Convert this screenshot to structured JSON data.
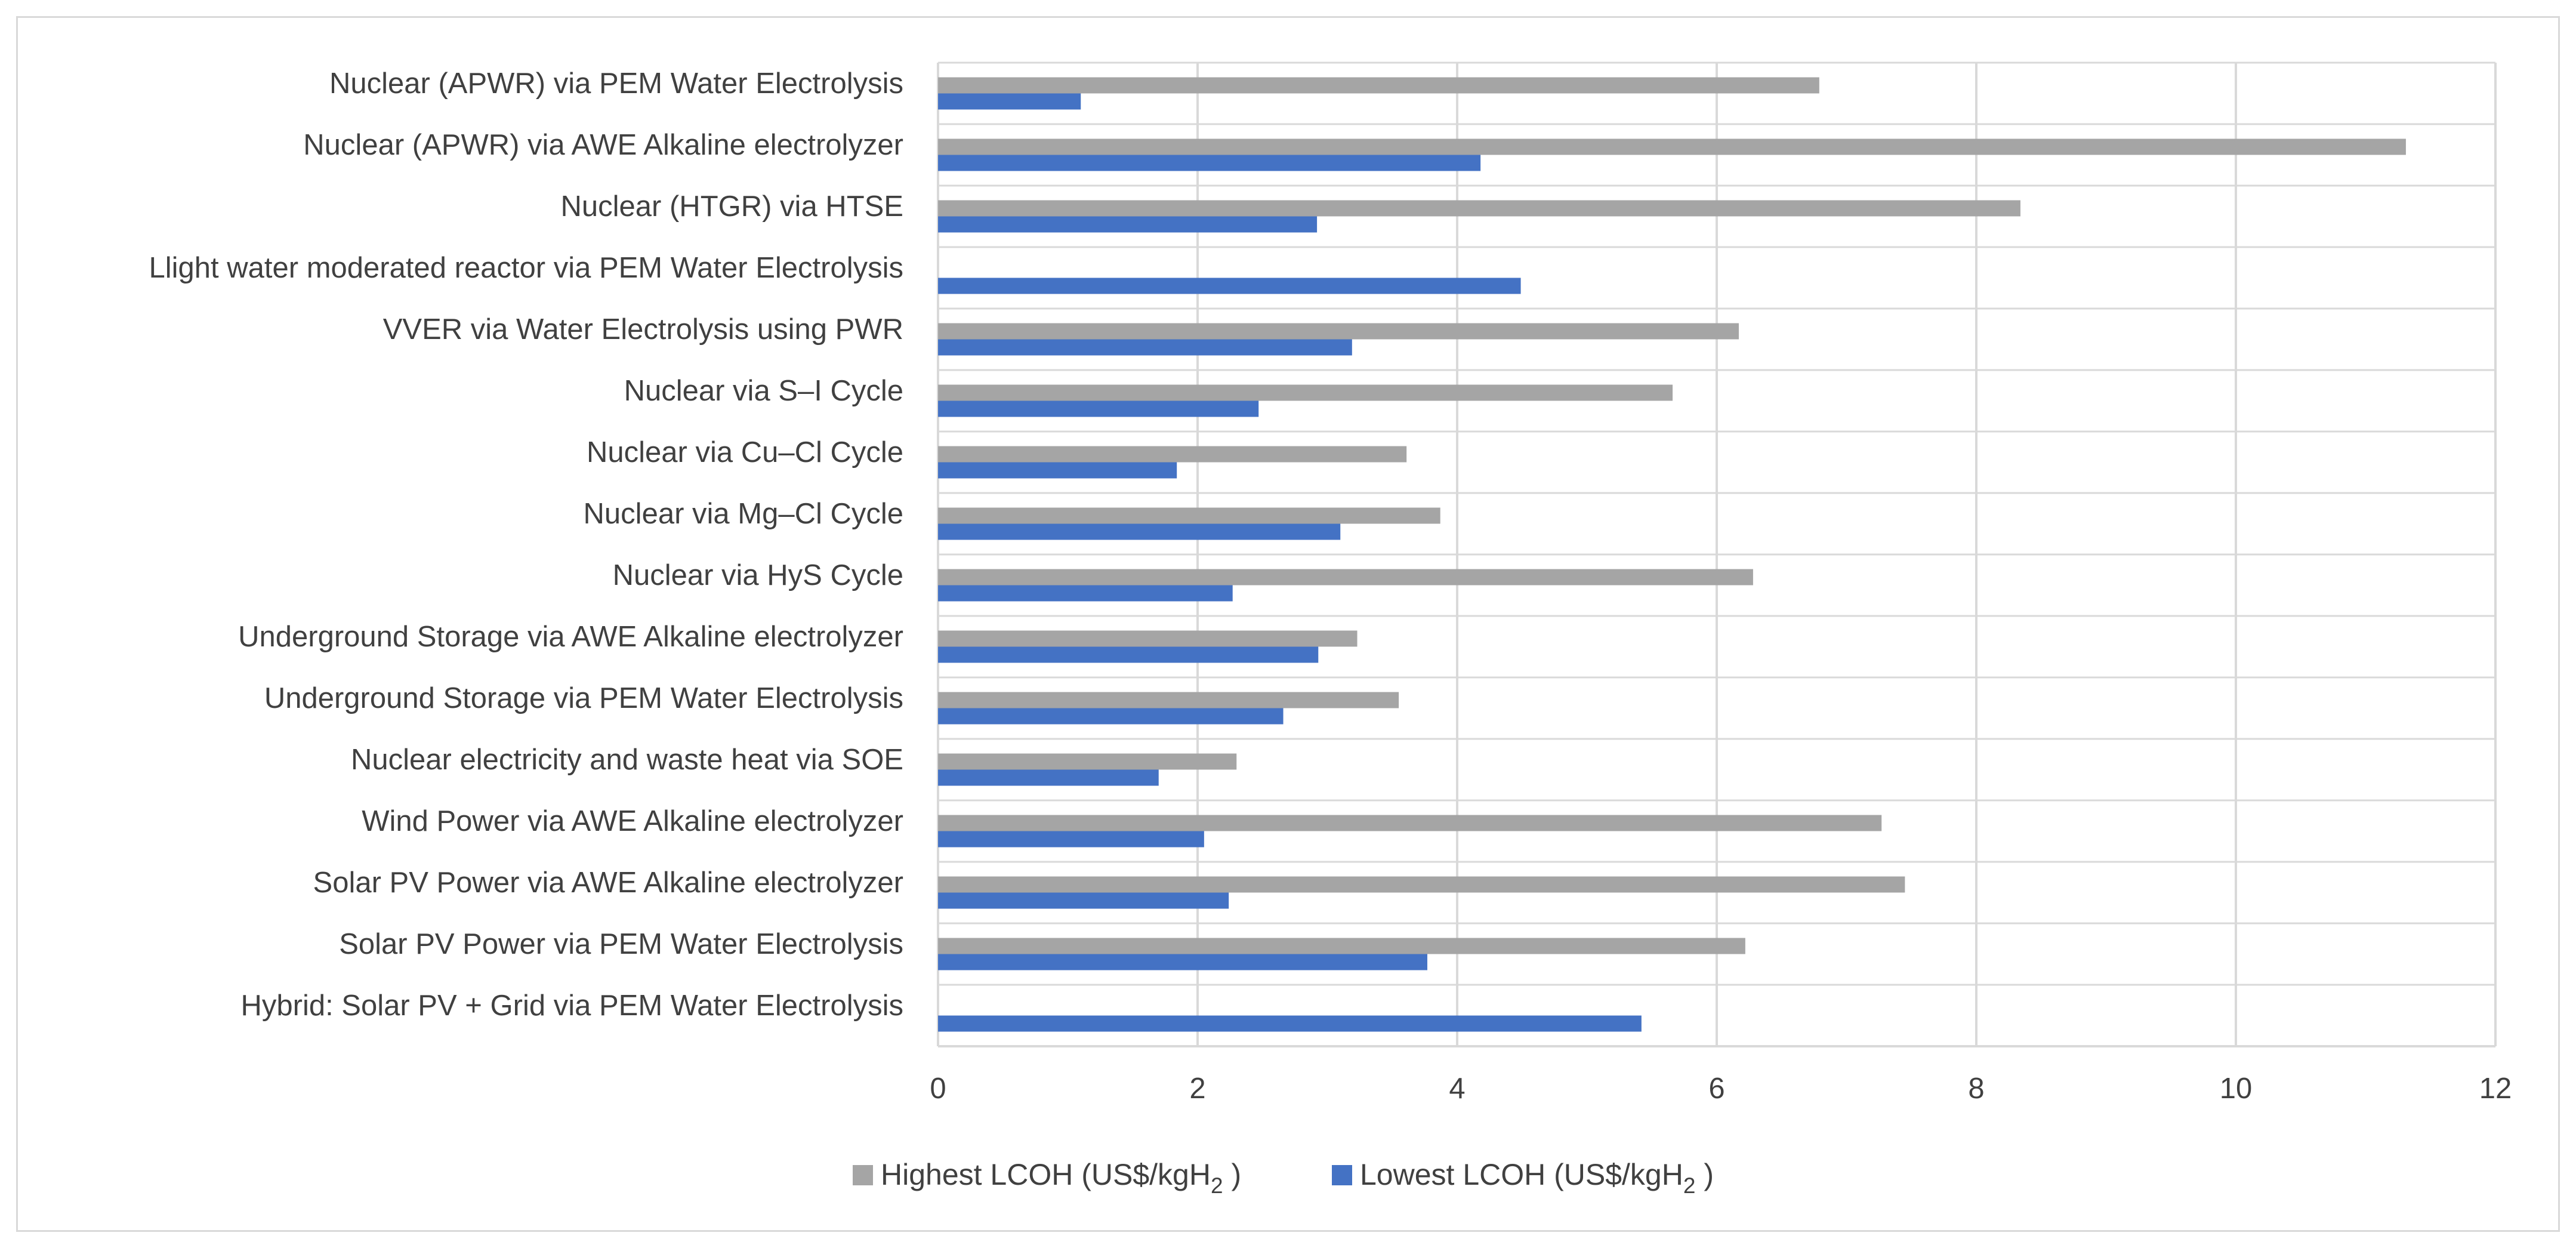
{
  "chart_data": {
    "type": "bar",
    "orientation": "horizontal",
    "title": "",
    "xlabel": "",
    "ylabel": "",
    "xlim": [
      0,
      12
    ],
    "xticks": [
      0,
      2,
      4,
      6,
      8,
      10,
      12
    ],
    "grid": true,
    "legend_position": "bottom",
    "categories": [
      "Nuclear (APWR) via PEM Water Electrolysis",
      "Nuclear (APWR) via AWE Alkaline electrolyzer",
      "Nuclear (HTGR) via HTSE",
      "Llight water moderated reactor via PEM Water Electrolysis",
      "VVER via Water Electrolysis using PWR",
      "Nuclear via S–I Cycle",
      "Nuclear via Cu–Cl Cycle",
      "Nuclear via Mg–Cl Cycle",
      "Nuclear via HyS Cycle",
      "Underground Storage via AWE Alkaline electrolyzer",
      "Underground Storage via PEM Water Electrolysis",
      "Nuclear electricity and waste heat via SOE",
      "Wind Power via AWE Alkaline electrolyzer",
      "Solar PV Power via AWE Alkaline electrolyzer",
      "Solar PV Power via PEM Water Electrolysis",
      "Hybrid: Solar PV + Grid via PEM Water Electrolysis"
    ],
    "series": [
      {
        "name": "Highest LCOH (US$/kgH",
        "subscript": "2",
        "suffix": " )",
        "color": "#a5a5a5",
        "values": [
          6.79,
          11.31,
          8.34,
          null,
          6.17,
          5.66,
          3.61,
          3.87,
          6.28,
          3.23,
          3.55,
          2.3,
          7.27,
          7.45,
          6.22,
          null
        ]
      },
      {
        "name": "Lowest LCOH (US$/kgH",
        "subscript": "2",
        "suffix": " )",
        "color": "#4472c4",
        "values": [
          1.1,
          4.18,
          2.92,
          4.49,
          3.19,
          2.47,
          1.84,
          3.1,
          2.27,
          2.93,
          2.66,
          1.7,
          2.05,
          2.24,
          3.77,
          5.42
        ]
      }
    ],
    "colors": {
      "grid": "#d9d9d9",
      "axis": "#d9d9d9",
      "text": "#404040"
    }
  }
}
